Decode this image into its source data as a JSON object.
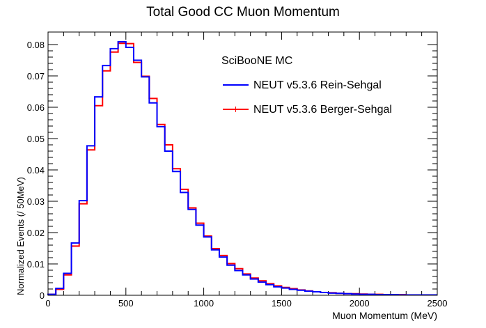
{
  "chart_data": {
    "type": "line",
    "title": "Total Good CC Muon Momentum",
    "xlabel": "Muon Momentum (MeV)",
    "ylabel": "Normalized Events (/ 50MeV)",
    "xlim": [
      0,
      2500
    ],
    "ylim": [
      0,
      0.084
    ],
    "bin_width": 50,
    "x_ticks": [
      "0",
      "500",
      "1000",
      "1500",
      "2000",
      "2500"
    ],
    "y_ticks": [
      "0",
      "0.01",
      "0.02",
      "0.03",
      "0.04",
      "0.05",
      "0.06",
      "0.07",
      "0.08"
    ],
    "legend_header": "SciBooNE MC",
    "legend_position": "top-right",
    "grid": false,
    "series": [
      {
        "name": "NEUT v5.3.6 Rein-Sehgal",
        "color": "#0000ff",
        "values": [
          0.0003,
          0.0022,
          0.007,
          0.0167,
          0.0302,
          0.0477,
          0.0633,
          0.0733,
          0.0787,
          0.0809,
          0.0791,
          0.075,
          0.0697,
          0.0614,
          0.0538,
          0.046,
          0.0395,
          0.0328,
          0.0274,
          0.0224,
          0.0186,
          0.0145,
          0.0122,
          0.0096,
          0.0079,
          0.0065,
          0.0052,
          0.0042,
          0.0034,
          0.0027,
          0.0023,
          0.0019,
          0.0016,
          0.0013,
          0.0011,
          0.0009,
          0.0007,
          0.0006,
          0.0005,
          0.0004,
          0.0003,
          0.0003,
          0.0002,
          0.0002,
          0.0002,
          0.0001,
          0.0001,
          0.0001,
          0.0001,
          0.0001
        ]
      },
      {
        "name": "NEUT v5.3.6 Berger-Sehgal",
        "color": "#ff0000",
        "values": [
          0.0003,
          0.0019,
          0.0065,
          0.0157,
          0.0292,
          0.0464,
          0.0605,
          0.0716,
          0.0776,
          0.0804,
          0.0803,
          0.0743,
          0.0699,
          0.0628,
          0.0545,
          0.048,
          0.0404,
          0.0338,
          0.0279,
          0.023,
          0.0189,
          0.0149,
          0.0127,
          0.0101,
          0.0085,
          0.0068,
          0.0055,
          0.0046,
          0.0037,
          0.003,
          0.0025,
          0.0021,
          0.0017,
          0.0014,
          0.0011,
          0.0009,
          0.0008,
          0.0006,
          0.0005,
          0.0005,
          0.0004,
          0.0003,
          0.0003,
          0.0002,
          0.0002,
          0.0002,
          0.0001,
          0.0001,
          0.0001,
          0.0001
        ]
      }
    ]
  }
}
